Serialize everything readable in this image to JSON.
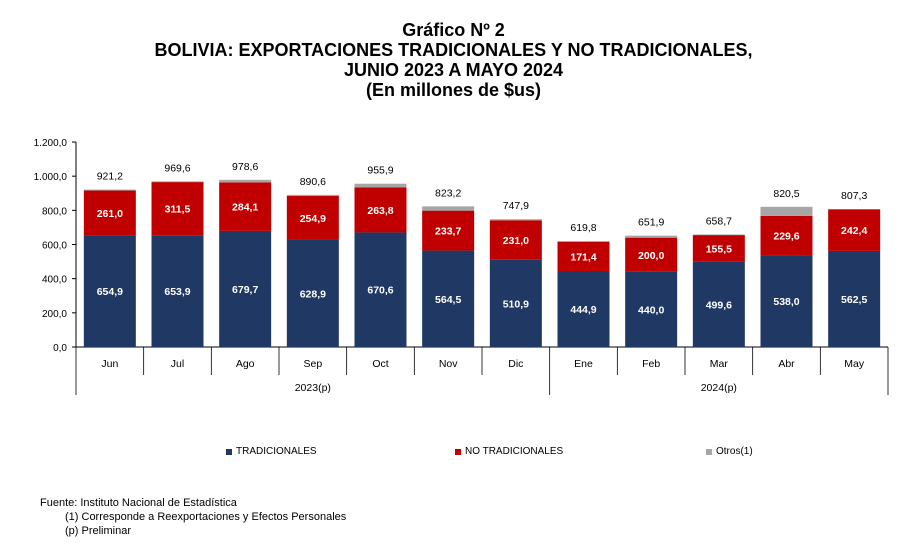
{
  "titles": {
    "line1": "Gráfico Nº 2",
    "line2": "BOLIVIA: EXPORTACIONES TRADICIONALES Y NO TRADICIONALES,",
    "line3": "JUNIO 2023 A MAYO 2024",
    "line4": "(En millones de $us)"
  },
  "chart_data": {
    "type": "bar",
    "stacked": true,
    "categories": [
      "Jun",
      "Jul",
      "Ago",
      "Sep",
      "Oct",
      "Nov",
      "Dic",
      "Ene",
      "Feb",
      "Mar",
      "Abr",
      "May"
    ],
    "year_groups": [
      {
        "label": "2023(p)",
        "categories": [
          "Jun",
          "Jul",
          "Ago",
          "Sep",
          "Oct",
          "Nov",
          "Dic"
        ]
      },
      {
        "label": "2024(p)",
        "categories": [
          "Ene",
          "Feb",
          "Mar",
          "Abr",
          "May"
        ]
      }
    ],
    "series": [
      {
        "name": "TRADICIONALES",
        "color": "#1f3864",
        "values": [
          654.9,
          653.9,
          679.7,
          628.9,
          670.6,
          564.5,
          510.9,
          444.9,
          440.0,
          499.6,
          538.0,
          562.5
        ],
        "labels": [
          "654,9",
          "653,9",
          "679,7",
          "628,9",
          "670,6",
          "564,5",
          "510,9",
          "444,9",
          "440,0",
          "499,6",
          "538,0",
          "562,5"
        ]
      },
      {
        "name": "NO TRADICIONALES",
        "color": "#c00000",
        "values": [
          261.0,
          311.5,
          284.1,
          254.9,
          263.8,
          233.7,
          231.0,
          171.4,
          200.0,
          155.5,
          229.6,
          242.4
        ],
        "labels": [
          "261,0",
          "311,5",
          "284,1",
          "254,9",
          "263,8",
          "233,7",
          "231,0",
          "171,4",
          "200,0",
          "155,5",
          "229,6",
          "242,4"
        ]
      },
      {
        "name": "Otros(1)",
        "color": "#a6a6a6",
        "values": [
          5.3,
          4.2,
          14.8,
          6.8,
          21.5,
          25.0,
          6.0,
          3.5,
          11.9,
          3.6,
          52.9,
          2.4
        ]
      }
    ],
    "totals": [
      921.2,
      969.6,
      978.6,
      890.6,
      955.9,
      823.2,
      747.9,
      619.8,
      651.9,
      658.7,
      820.5,
      807.3
    ],
    "total_labels": [
      "921,2",
      "969,6",
      "978,6",
      "890,6",
      "955,9",
      "823,2",
      "747,9",
      "619,8",
      "651,9",
      "658,7",
      "820,5",
      "807,3"
    ],
    "ylim": [
      0,
      1200
    ],
    "yticks": [
      0,
      200,
      400,
      600,
      800,
      1000,
      1200
    ],
    "ytick_labels": [
      "0,0",
      "200,0",
      "400,0",
      "600,0",
      "800,0",
      "1.000,0",
      "1.200,0"
    ],
    "legend_position": "bottom"
  },
  "notes": {
    "source": "Fuente: Instituto Nacional de Estadística",
    "note1": "(1) Corresponde a Reexportaciones y Efectos Personales",
    "note2": "(p) Preliminar"
  }
}
